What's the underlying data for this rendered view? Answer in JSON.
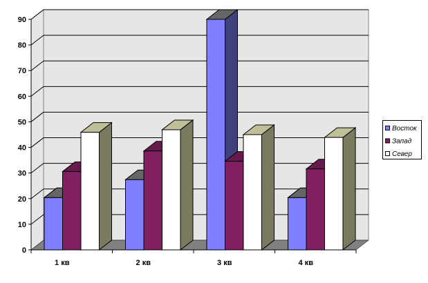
{
  "chart_data": {
    "type": "bar",
    "variant": "3d-clustered-column",
    "categories": [
      "1 кв",
      "2 кв",
      "3 кв",
      "4 кв"
    ],
    "series": [
      {
        "name": "Восток",
        "values": [
          20.4,
          27.4,
          90,
          20.4
        ],
        "color": "#8080FF",
        "top_color": "#666666",
        "side_color": "#40407A"
      },
      {
        "name": "Запад",
        "values": [
          30.6,
          38.6,
          34.6,
          31.6
        ],
        "color": "#802060",
        "top_color": "#661A4D",
        "side_color": "#661A4D"
      },
      {
        "name": "Север",
        "values": [
          45.9,
          46.9,
          45,
          43.9
        ],
        "color": "#FFFFFF",
        "top_color": "#BFBF99",
        "side_color": "#7A7A60"
      }
    ],
    "ylim": [
      0,
      90
    ],
    "yticks": [
      "0",
      "10",
      "20",
      "30",
      "40",
      "50",
      "60",
      "70",
      "80",
      "90"
    ],
    "grid": true,
    "legend": "right",
    "wall_color": "#E6E6E6",
    "floor_color": "#808080"
  }
}
